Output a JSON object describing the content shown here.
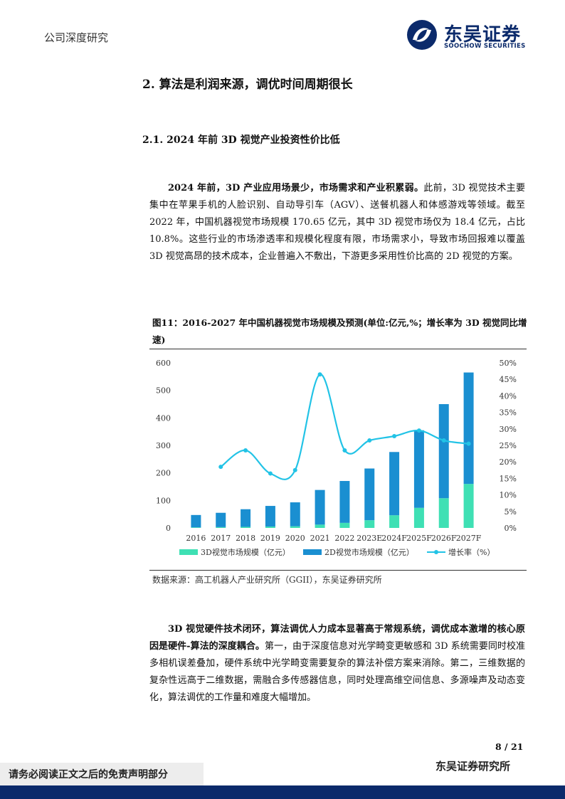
{
  "header": {
    "doc_type": "公司深度研究",
    "brand_cn": "东吴证券",
    "brand_en": "SOOCHOW SECURITIES"
  },
  "section": {
    "h2": "2.  算法是利润来源，调优时间周期很长",
    "h3": "2.1.   2024 年前 3D 视觉产业投资性价比低"
  },
  "para1": {
    "bold": "2024 年前，3D 产业应用场景少，市场需求和产业积累弱。",
    "rest": "此前，3D 视觉技术主要集中在苹果手机的人脸识别、自动导引车（AGV）、送餐机器人和体感游戏等领域。截至 2022 年，中国机器视觉市场规模 170.65 亿元，其中 3D 视觉市场仅为 18.4 亿元，占比 10.8%。这些行业的市场渗透率和规模化程度有限，市场需求小，导致市场回报难以覆盖 3D 视觉高昂的技术成本，企业普遍入不敷出，下游更多采用性价比高的 2D 视觉的方案。"
  },
  "figure": {
    "caption": "图11：2016-2027 年中国机器视觉市场规模及预测(单位:亿元,%；增长率为 3D 视觉同比增速)",
    "source": "数据来源：高工机器人产业研究所（GGII），东吴证券研究所"
  },
  "para2": {
    "bold": "3D 视觉硬件技术闭环，算法调优人力成本显著高于常规系统，调优成本激增的核心原因是硬件-算法的深度耦合。",
    "rest": "第一，由于深度信息对光学畸变更敏感和 3D 系统需要同时校准多相机误差叠加，硬件系统中光学畸变需要复杂的算法补偿方案来消除。第二，三维数据的复杂性远高于二维数据，需融合多传感器信息，同时处理高维空间信息、多源噪声及动态变化，算法调优的工作量和难度大幅增加。"
  },
  "footer": {
    "page": "8 / 21",
    "brand": "东吴证券研究所",
    "disclaimer": "请务必阅读正文之后的免责声明部分"
  },
  "colors": {
    "bar_3d": "#3fe0b4",
    "bar_2d": "#1a8fd1",
    "line": "#22c3e6",
    "brand": "#0b2a6b"
  },
  "chart_data": {
    "type": "bar",
    "stacked": true,
    "categories": [
      "2016",
      "2017",
      "2018",
      "2019",
      "2020",
      "2021",
      "2022",
      "2023E",
      "2024F",
      "2025F",
      "2026F",
      "2027F"
    ],
    "series": [
      {
        "name": "3D视觉市场规模（亿元）",
        "axis": "left",
        "values": [
          2,
          3,
          4,
          5,
          6,
          12,
          18.4,
          28,
          46,
          73,
          108,
          160
        ]
      },
      {
        "name": "2D视觉市场规模（亿元）",
        "axis": "left",
        "values": [
          45,
          52,
          64,
          75,
          87,
          126,
          152.25,
          188,
          230,
          282,
          342,
          405
        ]
      },
      {
        "name": "增长率（%）",
        "type": "line",
        "axis": "right",
        "values": [
          null,
          18.5,
          23.5,
          16.5,
          17.5,
          46.5,
          23.5,
          26.5,
          27.8,
          29.5,
          26.5,
          25.5
        ]
      }
    ],
    "yleft": {
      "min": 0,
      "max": 600,
      "ticks": [
        "0",
        "100",
        "200",
        "300",
        "400",
        "500",
        "600"
      ]
    },
    "yright": {
      "min": 0,
      "max": 50,
      "ticks": [
        "0%",
        "5%",
        "10%",
        "15%",
        "20%",
        "25%",
        "30%",
        "35%",
        "40%",
        "45%",
        "50%"
      ]
    },
    "legend": "bottom",
    "grid": false
  }
}
